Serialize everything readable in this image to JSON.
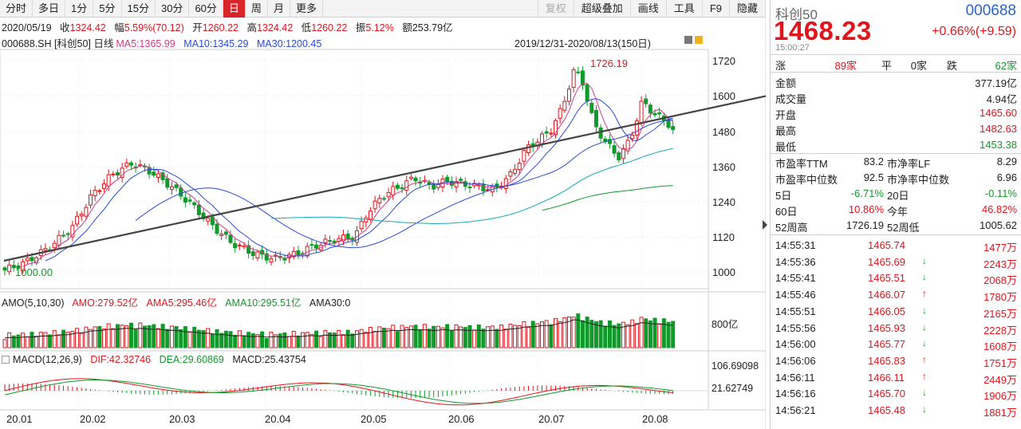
{
  "toolbar": {
    "left_buttons": [
      {
        "label": "分时",
        "active": false
      },
      {
        "label": "多日",
        "active": false
      },
      {
        "label": "1分",
        "active": false
      },
      {
        "label": "5分",
        "active": false
      },
      {
        "label": "15分",
        "active": false
      },
      {
        "label": "30分",
        "active": false
      },
      {
        "label": "60分",
        "active": false
      },
      {
        "label": "日",
        "active": true
      },
      {
        "label": "周",
        "active": false
      },
      {
        "label": "月",
        "active": false
      },
      {
        "label": "更多",
        "active": false
      }
    ],
    "right_buttons": [
      {
        "label": "复权",
        "disabled": true
      },
      {
        "label": "超级叠加",
        "disabled": false
      },
      {
        "label": "画线",
        "disabled": false
      },
      {
        "label": "工具",
        "disabled": false
      },
      {
        "label": "F9",
        "disabled": false
      },
      {
        "label": "隐藏",
        "disabled": false
      }
    ]
  },
  "bar_info": {
    "date": "2020/05/19",
    "close_label": "收",
    "close": "1324.42",
    "range_label": "幅",
    "range": "5.59%(70.12)",
    "open_label": "开",
    "open": "1260.22",
    "high_label": "高",
    "high": "1324.42",
    "low_label": "低",
    "low": "1260.22",
    "amp_label": "振",
    "amp": "5.12%",
    "amount_label": "额",
    "amount": "253.79亿"
  },
  "ma_info": {
    "code": "000688.SH [科创50] 日线",
    "ma5": "MA5:1365.99",
    "ma10": "MA10:1345.29",
    "ma30": "MA30:1200.45",
    "date_range": "2019/12/31-2020/08/13(150日)"
  },
  "price_axis": {
    "ticks": [
      "1720",
      "1600",
      "1480",
      "1360",
      "1240",
      "1120",
      "1000"
    ],
    "max_label": "1726.19",
    "min_label": "1000.00"
  },
  "amo_info": {
    "title": "AMO(5,10,30)",
    "amo": "AMO:279.52亿",
    "ama5": "AMA5:295.46亿",
    "ama10": "AMA10:295.51亿",
    "ama30": "AMA30:0",
    "axis_label": "800亿"
  },
  "macd_info": {
    "title": "MACD(12,26,9)",
    "dif": "DIF:42.32746",
    "dea": "DEA:29.60869",
    "macd": "MACD:25.43754",
    "axis_top": "106.69098",
    "axis_mid": "21.62749"
  },
  "date_axis": [
    "20.01",
    "20.02",
    "20.03",
    "20.04",
    "20.05",
    "20.06",
    "20.07",
    "20.08"
  ],
  "quote": {
    "name": "科创50",
    "code": "000688",
    "price": "1468.23",
    "change": "+0.66%(+9.59)",
    "time": "15:00:27",
    "up_label": "涨",
    "up_count": "89家",
    "flat_label": "平",
    "flat_count": "0家",
    "down_label": "跌",
    "down_count": "62家",
    "stats": [
      {
        "label": "金额",
        "value": "377.19亿",
        "color": "#222222"
      },
      {
        "label": "成交量",
        "value": "4.94亿",
        "color": "#222222"
      },
      {
        "label": "开盘",
        "value": "1465.60",
        "color": "#e0161d"
      },
      {
        "label": "最高",
        "value": "1482.63",
        "color": "#e0161d"
      },
      {
        "label": "最低",
        "value": "1453.38",
        "color": "#119a2b"
      }
    ],
    "pe_ttm_label": "市盈率TTM",
    "pe_ttm": "83.2",
    "pb_lf_label": "市净率LF",
    "pb_lf": "8.29",
    "pe_mid_label": "市盈率中位数",
    "pe_mid": "92.5",
    "pb_mid_label": "市净率中位数",
    "pb_mid": "6.96",
    "d5_label": "5日",
    "d5": "-6.71%",
    "d20_label": "20日",
    "d20": "-0.11%",
    "d60_label": "60日",
    "d60": "10.86%",
    "ytd_label": "今年",
    "ytd": "46.82%",
    "w52h_label": "52周高",
    "w52h": "1726.19",
    "w52l_label": "52周低",
    "w52l": "1005.62"
  },
  "ticks": [
    {
      "time": "14:55:31",
      "price": "1465.74",
      "dir": "",
      "vol": "1477万"
    },
    {
      "time": "14:55:36",
      "price": "1465.69",
      "dir": "down",
      "vol": "2243万"
    },
    {
      "time": "14:55:41",
      "price": "1465.51",
      "dir": "down",
      "vol": "2068万"
    },
    {
      "time": "14:55:46",
      "price": "1466.07",
      "dir": "up",
      "vol": "1780万"
    },
    {
      "time": "14:55:51",
      "price": "1466.05",
      "dir": "down",
      "vol": "2165万"
    },
    {
      "time": "14:55:56",
      "price": "1465.93",
      "dir": "down",
      "vol": "2228万"
    },
    {
      "time": "14:56:00",
      "price": "1465.77",
      "dir": "down",
      "vol": "1608万"
    },
    {
      "time": "14:56:06",
      "price": "1465.83",
      "dir": "up",
      "vol": "1751万"
    },
    {
      "time": "14:56:11",
      "price": "1466.11",
      "dir": "up",
      "vol": "2449万"
    },
    {
      "time": "14:56:16",
      "price": "1465.70",
      "dir": "down",
      "vol": "1906万"
    },
    {
      "time": "14:56:21",
      "price": "1465.48",
      "dir": "down",
      "vol": "1881万"
    }
  ],
  "colors": {
    "up": "#e0161d",
    "down": "#119a2b",
    "accent": "#d9262c",
    "code": "#2a64c8"
  }
}
